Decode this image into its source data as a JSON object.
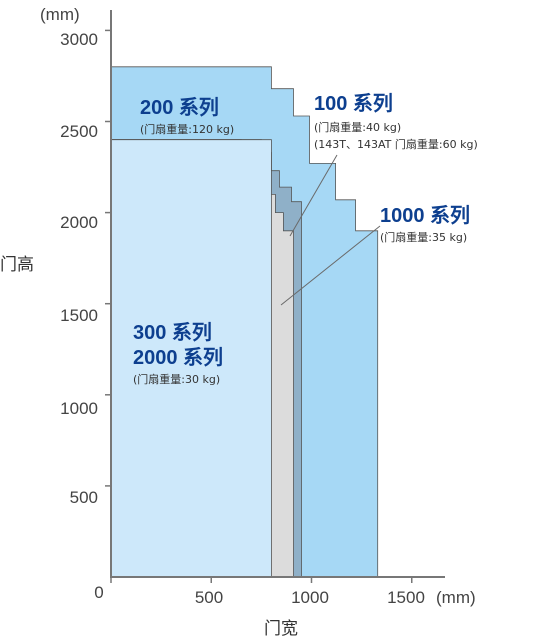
{
  "chart_data": {
    "type": "area",
    "xlabel": "门宽",
    "ylabel": "门高",
    "x_unit": "(mm)",
    "y_unit": "(mm)",
    "xlim": [
      0,
      1700
    ],
    "ylim": [
      0,
      3000
    ],
    "x_ticks": [
      "0",
      "500",
      "1000",
      "1500"
    ],
    "x_tick_values": [
      0,
      500,
      1000,
      1500
    ],
    "y_ticks": [
      "500",
      "1000",
      "1500",
      "2000",
      "2500",
      "3000"
    ],
    "y_tick_values": [
      500,
      1000,
      1500,
      2000,
      2500,
      3000
    ],
    "grid": false,
    "series": [
      {
        "key": "s200",
        "name": "200 系列",
        "note": "(门扇重量:120 kg)",
        "color": "#a6d8f5",
        "outline": [
          [
            0,
            0
          ],
          [
            0,
            2800
          ],
          [
            800,
            2800
          ],
          [
            800,
            2680
          ],
          [
            910,
            2680
          ],
          [
            910,
            2530
          ],
          [
            990,
            2530
          ],
          [
            990,
            2270
          ],
          [
            1120,
            2270
          ],
          [
            1120,
            2070
          ],
          [
            1220,
            2070
          ],
          [
            1220,
            1900
          ],
          [
            1330,
            1900
          ],
          [
            1330,
            0
          ]
        ]
      },
      {
        "key": "s100",
        "name": "100 系列",
        "note": "(门扇重量:40 kg)",
        "note2": "(143T、143AT 门扇重量:60 kg)",
        "color": "#8fb0c8",
        "outline": [
          [
            0,
            0
          ],
          [
            0,
            2400
          ],
          [
            750,
            2400
          ],
          [
            750,
            2330
          ],
          [
            800,
            2330
          ],
          [
            800,
            2230
          ],
          [
            840,
            2230
          ],
          [
            840,
            2140
          ],
          [
            900,
            2140
          ],
          [
            900,
            2060
          ],
          [
            950,
            2060
          ],
          [
            950,
            0
          ]
        ]
      },
      {
        "key": "s1000",
        "name": "1000 系列",
        "note": "(门扇重量:35 kg)",
        "color": "#dcdcdc",
        "outline": [
          [
            0,
            0
          ],
          [
            0,
            2400
          ],
          [
            650,
            2400
          ],
          [
            650,
            2350
          ],
          [
            700,
            2350
          ],
          [
            700,
            2280
          ],
          [
            740,
            2280
          ],
          [
            740,
            2200
          ],
          [
            780,
            2200
          ],
          [
            780,
            2100
          ],
          [
            820,
            2100
          ],
          [
            820,
            2000
          ],
          [
            860,
            2000
          ],
          [
            860,
            1900
          ],
          [
            910,
            1900
          ],
          [
            910,
            0
          ]
        ]
      },
      {
        "key": "s300",
        "name": "300 系列",
        "name2": "2000 系列",
        "note": "(门扇重量:30 kg)",
        "color": "#cde8fa",
        "outline": [
          [
            0,
            0
          ],
          [
            0,
            2400
          ],
          [
            800,
            2400
          ],
          [
            800,
            0
          ]
        ]
      }
    ]
  }
}
